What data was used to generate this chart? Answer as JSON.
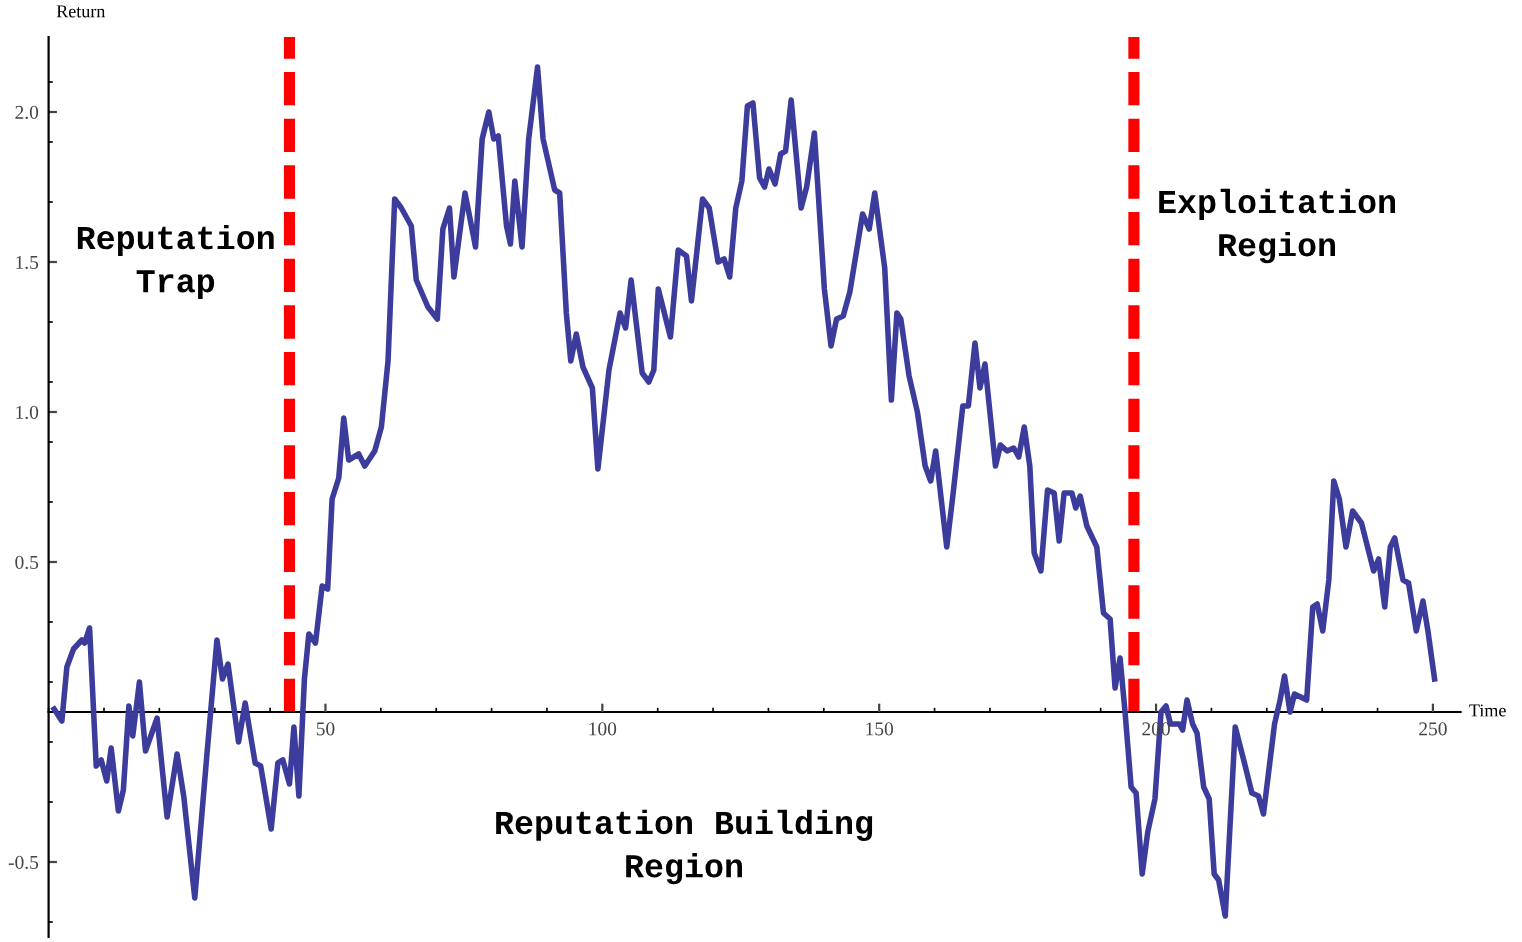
{
  "chart_data": {
    "type": "line",
    "xlabel": "Time",
    "ylabel": "Return",
    "xlim": [
      0,
      255
    ],
    "ylim": [
      -0.75,
      2.25
    ],
    "xticks": [
      50,
      100,
      150,
      200,
      250
    ],
    "yticks": [
      {
        "value": -0.5,
        "label": "-0.5"
      },
      {
        "value": 0.5,
        "label": "0.5"
      },
      {
        "value": 1.0,
        "label": "1.0"
      },
      {
        "value": 1.5,
        "label": "1.5"
      },
      {
        "value": 2.0,
        "label": "2.0"
      }
    ],
    "grid": false,
    "marker": "none",
    "line_style": "solid",
    "series": [
      {
        "color": "#3c3c9c",
        "x": [
          1,
          2.4,
          3.3,
          4.5,
          6,
          6.5,
          7.4,
          8.6,
          9.5,
          10.5,
          11.3,
          12.6,
          13.5,
          14.5,
          15.2,
          16.4,
          17.5,
          19.6,
          21.4,
          23.2,
          24.4,
          26.4,
          28.6,
          30.4,
          31.4,
          32.4,
          34.3,
          35.5,
          37.3,
          38.3,
          40.2,
          41.4,
          42.3,
          43.5,
          44.3,
          45.2,
          46.2,
          47,
          48.2,
          49.4,
          50.4,
          51.2,
          52.4,
          53.3,
          54.2,
          56,
          57.1,
          58.9,
          60.1,
          61.3,
          62.5,
          63.7,
          65.5,
          66.4,
          68.5,
          70.2,
          71.2,
          72.4,
          73.2,
          75.2,
          77.1,
          78.3,
          79.5,
          80.4,
          81.2,
          82.7,
          83.4,
          84.2,
          85.5,
          86.7,
          88.3,
          89.3,
          91.4,
          92.3,
          93.5,
          94.3,
          95.3,
          96.5,
          98.2,
          99.2,
          101.2,
          103.2,
          104.2,
          105.2,
          107.2,
          108.4,
          109.3,
          110.1,
          112.3,
          113.7,
          115.2,
          116.1,
          118.1,
          119.3,
          120.9,
          122.0,
          123.0,
          124.1,
          125.2,
          126.2,
          127.2,
          128.4,
          129.3,
          130.1,
          131.2,
          132.2,
          133.1,
          134.1,
          135.9,
          136.9,
          138.3,
          140.1,
          141.3,
          142.3,
          143.5,
          144.7,
          147.0,
          148.2,
          149.2,
          151.0,
          152.2,
          153.2,
          153.9,
          155.4,
          156.9,
          158.3,
          159.3,
          160.2,
          162.2,
          163.3,
          165.1,
          166.1,
          167.3,
          168.2,
          169.1,
          171.0,
          171.9,
          173.1,
          174.3,
          175.2,
          176.2,
          177.2,
          178,
          179.2,
          180.4,
          181.6,
          182.5,
          183.4,
          184.8,
          185.5,
          186.3,
          187.5,
          189.3,
          190.5,
          191.7,
          192.6,
          193.5,
          194.4,
          195.5,
          196.4,
          197.5,
          198.5,
          199.8,
          200.9,
          201.8,
          202.6,
          204.2,
          204.8,
          205.6,
          206.6,
          207.4,
          208.6,
          209.6,
          210.5,
          211.3,
          212.5,
          214.3,
          216.1,
          217.3,
          218.5,
          219.4,
          221.4,
          222.4,
          223.2,
          224.2,
          225.0,
          227.2,
          228.3,
          229.1,
          230.1,
          231.2,
          232.1,
          233.1,
          234.3,
          235.5,
          237.1,
          239.3,
          240.2,
          241.3,
          242.3,
          243.1,
          244.6,
          245.6,
          247.0,
          248.2,
          249.1,
          250.3
        ],
        "values": [
          0.01,
          -0.03,
          0.15,
          0.21,
          0.24,
          0.23,
          0.28,
          -0.18,
          -0.16,
          -0.23,
          -0.12,
          -0.33,
          -0.26,
          0.02,
          -0.08,
          0.1,
          -0.13,
          -0.02,
          -0.35,
          -0.14,
          -0.28,
          -0.62,
          -0.14,
          0.24,
          0.11,
          0.16,
          -0.1,
          0.03,
          -0.17,
          -0.18,
          -0.39,
          -0.17,
          -0.16,
          -0.24,
          -0.05,
          -0.28,
          0.11,
          0.26,
          0.23,
          0.42,
          0.41,
          0.71,
          0.78,
          0.98,
          0.84,
          0.86,
          0.82,
          0.87,
          0.95,
          1.17,
          1.71,
          1.68,
          1.62,
          1.44,
          1.35,
          1.31,
          1.61,
          1.68,
          1.45,
          1.73,
          1.55,
          1.91,
          2.0,
          1.91,
          1.92,
          1.62,
          1.56,
          1.77,
          1.55,
          1.91,
          2.15,
          1.91,
          1.74,
          1.73,
          1.33,
          1.17,
          1.26,
          1.15,
          1.08,
          0.81,
          1.14,
          1.33,
          1.28,
          1.44,
          1.13,
          1.1,
          1.14,
          1.41,
          1.25,
          1.54,
          1.52,
          1.37,
          1.71,
          1.68,
          1.5,
          1.51,
          1.45,
          1.68,
          1.77,
          2.02,
          2.03,
          1.78,
          1.75,
          1.81,
          1.76,
          1.86,
          1.87,
          2.04,
          1.68,
          1.75,
          1.93,
          1.41,
          1.22,
          1.31,
          1.32,
          1.4,
          1.66,
          1.61,
          1.73,
          1.48,
          1.04,
          1.33,
          1.31,
          1.12,
          1.0,
          0.82,
          0.77,
          0.87,
          0.55,
          0.72,
          1.02,
          1.02,
          1.23,
          1.08,
          1.16,
          0.82,
          0.89,
          0.87,
          0.88,
          0.85,
          0.95,
          0.82,
          0.53,
          0.47,
          0.74,
          0.73,
          0.57,
          0.73,
          0.73,
          0.68,
          0.72,
          0.62,
          0.55,
          0.33,
          0.31,
          0.08,
          0.18,
          0.0,
          -0.25,
          -0.27,
          -0.54,
          -0.4,
          -0.29,
          0.0,
          0.02,
          -0.04,
          -0.04,
          -0.06,
          0.04,
          -0.04,
          -0.07,
          -0.25,
          -0.29,
          -0.54,
          -0.56,
          -0.68,
          -0.05,
          -0.18,
          -0.27,
          -0.28,
          -0.34,
          -0.04,
          0.04,
          0.12,
          0.0,
          0.06,
          0.04,
          0.35,
          0.36,
          0.27,
          0.44,
          0.77,
          0.71,
          0.55,
          0.67,
          0.63,
          0.47,
          0.51,
          0.35,
          0.55,
          0.58,
          0.44,
          0.43,
          0.27,
          0.37,
          0.27,
          0.11
        ]
      }
    ],
    "ref_lines": [
      {
        "axis": "x",
        "value": 43.5,
        "color": "#ff0000",
        "line_style": "dashed"
      },
      {
        "axis": "x",
        "value": 196,
        "color": "#ff0000",
        "line_style": "dashed"
      }
    ],
    "annotations": [
      "Reputation\nTrap",
      "Reputation Building\nRegion",
      "Exploitation\nRegion"
    ]
  }
}
